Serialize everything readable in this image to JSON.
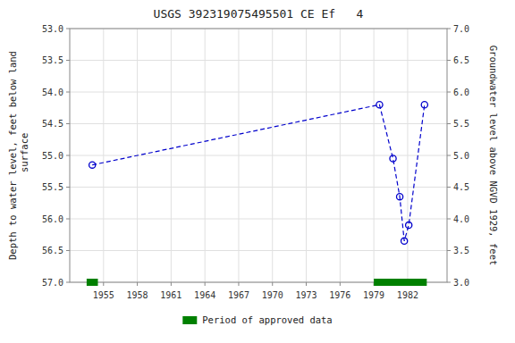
{
  "chart_data": {
    "type": "line",
    "title": "USGS 392319075495501 CE Ef   4",
    "ylabel": "Depth to water level, feet below land\n surface",
    "y2label": "Groundwater level above NGVD 1929, feet",
    "x": [
      1954.0,
      1979.5,
      1980.7,
      1981.3,
      1981.7,
      1982.1,
      1983.5
    ],
    "values": [
      55.15,
      54.2,
      55.05,
      55.65,
      56.35,
      56.1,
      54.2
    ],
    "color": "#0000CC",
    "marker": "circle",
    "line_style": "dashed",
    "xlim": [
      1952,
      1985.5
    ],
    "xticks": [
      1955,
      1958,
      1961,
      1964,
      1967,
      1970,
      1973,
      1976,
      1979,
      1982
    ],
    "ylim": [
      57.0,
      53.0
    ],
    "yticks": [
      {
        "value": 53.0,
        "label": "53.0"
      },
      53.5,
      {
        "value": 54.0,
        "label": "54.0"
      },
      54.5,
      {
        "value": 55.0,
        "label": "55.0"
      },
      55.5,
      {
        "value": 56.0,
        "label": "56.0"
      },
      56.5,
      {
        "value": 57.0,
        "label": "57.0"
      }
    ],
    "y2lim": [
      3.0,
      7.0
    ],
    "y2ticks": [
      {
        "value": 3.0,
        "label": "3.0"
      },
      3.5,
      {
        "value": 4.0,
        "label": "4.0"
      },
      4.5,
      {
        "value": 5.0,
        "label": "5.0"
      },
      5.5,
      {
        "value": 6.0,
        "label": "6.0"
      },
      6.5,
      {
        "value": 7.0,
        "label": "7.0"
      }
    ],
    "grid": true,
    "approved_periods": {
      "name": "Period of approved data",
      "color": "#008000",
      "ranges": [
        [
          1953.5,
          1954.5
        ],
        [
          1979.0,
          1983.7
        ]
      ]
    }
  }
}
